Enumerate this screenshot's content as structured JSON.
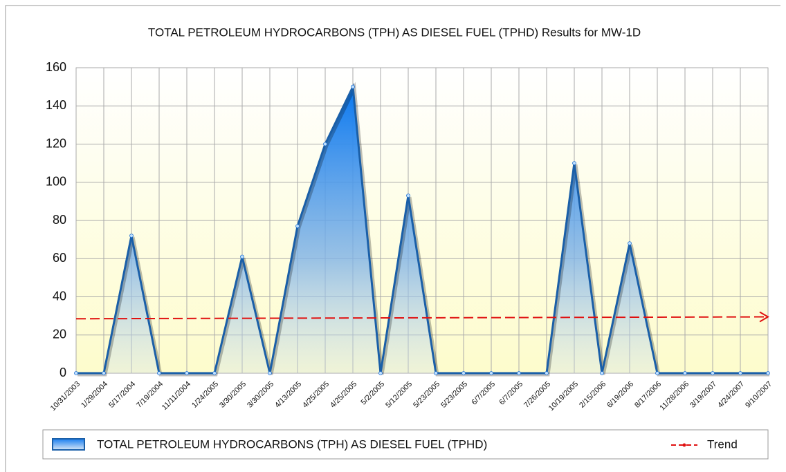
{
  "chart_data": {
    "type": "area",
    "title": "TOTAL PETROLEUM HYDROCARBONS (TPH) AS DIESEL FUEL (TPHD) Results for MW-1D",
    "categories": [
      "10/31/2003",
      "1/29/2004",
      "5/17/2004",
      "7/19/2004",
      "11/11/2004",
      "1/24/2005",
      "3/30/2005",
      "3/30/2005",
      "4/13/2005",
      "4/25/2005",
      "4/25/2005",
      "5/2/2005",
      "5/12/2005",
      "5/23/2005",
      "5/23/2005",
      "6/7/2005",
      "6/7/2005",
      "7/26/2005",
      "10/19/2005",
      "2/15/2006",
      "6/19/2006",
      "8/17/2006",
      "11/28/2006",
      "3/19/2007",
      "4/24/2007",
      "9/10/2007"
    ],
    "series": [
      {
        "name": "TOTAL PETROLEUM HYDROCARBONS (TPH) AS DIESEL FUEL (TPHD)",
        "color": "#1e6fd0",
        "values": [
          0,
          0,
          72,
          0,
          0,
          0,
          61,
          0,
          77,
          120,
          150,
          0,
          93,
          0,
          0,
          0,
          0,
          0,
          110,
          0,
          68,
          0,
          0,
          0,
          0,
          0
        ]
      }
    ],
    "trend": {
      "name": "Trend",
      "color": "#e01010",
      "values": [
        28.5,
        29.5
      ]
    },
    "ylim": [
      0,
      160
    ],
    "yticks": [
      0,
      20,
      40,
      60,
      80,
      100,
      120,
      140,
      160
    ],
    "grid": true
  }
}
